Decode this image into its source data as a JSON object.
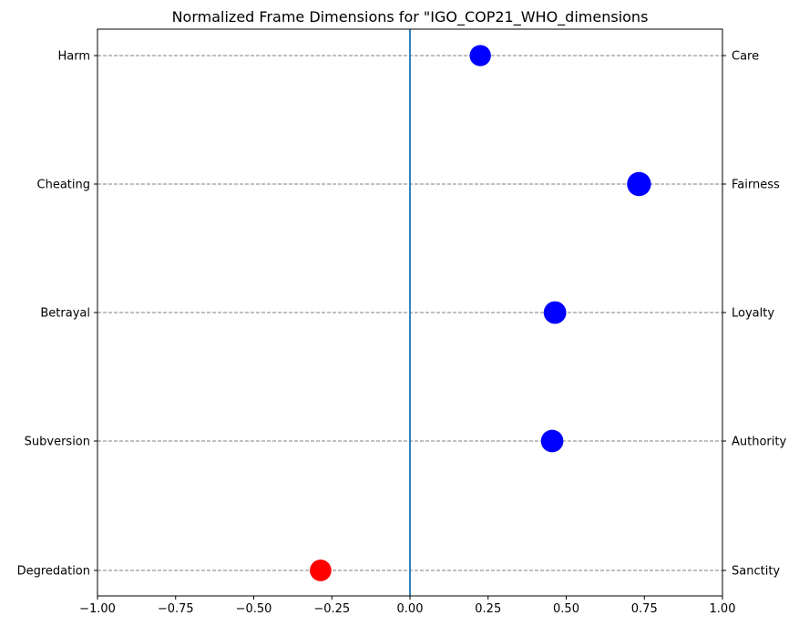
{
  "chart_data": {
    "type": "scatter",
    "title": "Normalized Frame Dimensions for \"IGO_COP21_WHO_dimensions",
    "xlim": [
      -1.0,
      1.0
    ],
    "x_ticks": [
      -1.0,
      -0.75,
      -0.5,
      -0.25,
      0.0,
      0.25,
      0.5,
      0.75,
      1.0
    ],
    "x_tick_labels": [
      "−1.00",
      "−0.75",
      "−0.50",
      "−0.25",
      "0.00",
      "0.25",
      "0.50",
      "0.75",
      "1.00"
    ],
    "left_labels": [
      "Harm",
      "Cheating",
      "Betrayal",
      "Subversion",
      "Degredation"
    ],
    "right_labels": [
      "Care",
      "Fairness",
      "Loyalty",
      "Authority",
      "Sanctity"
    ],
    "values": [
      0.225,
      0.733,
      0.464,
      0.455,
      -0.286
    ],
    "positive_color": "#0000ff",
    "negative_color": "#ff0000",
    "zero_line_color": "#1f77b4",
    "grid": "horizontal dashed",
    "xlabel": "",
    "ylabel": ""
  }
}
